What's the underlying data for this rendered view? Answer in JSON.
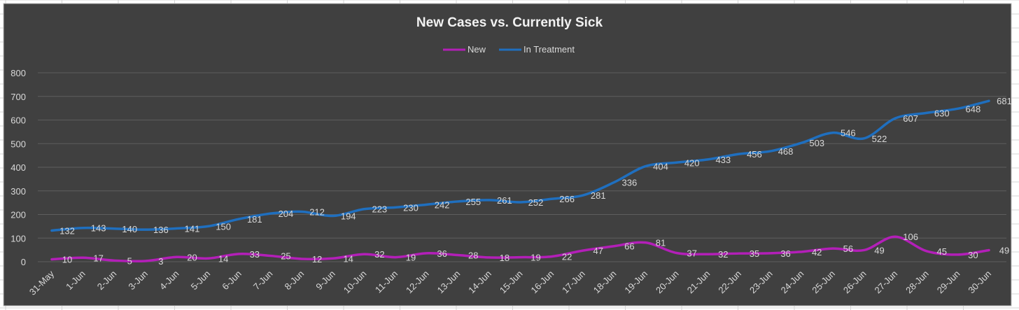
{
  "chart_data": {
    "type": "line",
    "title": "New Cases vs. Currently Sick",
    "xlabel": "",
    "ylabel": "",
    "ylim": [
      0,
      800
    ],
    "yticks": [
      0,
      100,
      200,
      300,
      400,
      500,
      600,
      700,
      800
    ],
    "grid": true,
    "legend_position": "top-center",
    "categories": [
      "31-May",
      "1-Jun",
      "2-Jun",
      "3-Jun",
      "4-Jun",
      "5-Jun",
      "6-Jun",
      "7-Jun",
      "8-Jun",
      "9-Jun",
      "10-Jun",
      "11-Jun",
      "12-Jun",
      "13-Jun",
      "14-Jun",
      "15-Jun",
      "16-Jun",
      "17-Jun",
      "18-Jun",
      "19-Jun",
      "20-Jun",
      "21-Jun",
      "22-Jun",
      "23-Jun",
      "24-Jun",
      "25-Jun",
      "26-Jun",
      "27-Jun",
      "28-Jun",
      "29-Jun",
      "30-Jun"
    ],
    "series": [
      {
        "name": "New",
        "color": "#b31fb8",
        "values": [
          10,
          17,
          5,
          3,
          20,
          14,
          33,
          25,
          12,
          14,
          32,
          19,
          36,
          28,
          18,
          19,
          22,
          47,
          66,
          81,
          37,
          32,
          35,
          36,
          42,
          56,
          49,
          106,
          45,
          30,
          49
        ]
      },
      {
        "name": "In Treatment",
        "color": "#1f6fbf",
        "values": [
          132,
          143,
          140,
          136,
          141,
          150,
          181,
          204,
          212,
          194,
          223,
          230,
          242,
          255,
          261,
          252,
          266,
          281,
          336,
          404,
          420,
          433,
          456,
          468,
          503,
          546,
          522,
          607,
          630,
          648,
          681
        ]
      }
    ],
    "colors": {
      "background": "#404040",
      "gridline": "#5e5e5e",
      "text": "#d9d9d9",
      "title": "#f2f2f2"
    }
  }
}
